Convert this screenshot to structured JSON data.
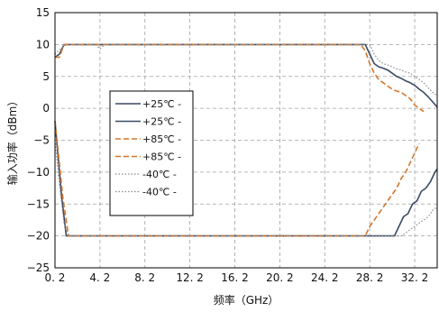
{
  "chart_data": {
    "type": "line",
    "title": "",
    "xlabel": "频率（GHz）",
    "ylabel": "输入功率（dBm）",
    "xlim": [
      0.2,
      34.2
    ],
    "ylim": [
      -25,
      15
    ],
    "xticks": [
      0.2,
      4.2,
      8.2,
      12.2,
      16.2,
      20.2,
      24.2,
      28.2,
      32.2
    ],
    "xtick_labels": [
      "0. 2",
      "4. 2",
      "8. 2",
      "12. 2",
      "16. 2",
      "20. 2",
      "24. 2",
      "28. 2",
      "32. 2"
    ],
    "yticks": [
      15,
      10,
      5,
      0,
      -5,
      -10,
      -15,
      -20,
      -25
    ],
    "ytick_labels": [
      "15",
      "10",
      "5",
      "0",
      "−5",
      "−10",
      "−15",
      "−20",
      "−25"
    ],
    "grid": true,
    "legend_position": "center-left",
    "series": [
      {
        "name": "+25℃ -",
        "color": "#3a4a64",
        "style": "solid",
        "points": [
          [
            0.2,
            8
          ],
          [
            0.6,
            8.5
          ],
          [
            1.0,
            10
          ],
          [
            27.8,
            10
          ],
          [
            28.2,
            8.5
          ],
          [
            28.6,
            7
          ],
          [
            29.0,
            6.5
          ],
          [
            29.4,
            6.3
          ],
          [
            29.8,
            6
          ],
          [
            30.2,
            5.5
          ],
          [
            30.6,
            5
          ],
          [
            31.0,
            4.7
          ],
          [
            31.4,
            4.3
          ],
          [
            31.8,
            4
          ],
          [
            32.2,
            3.6
          ],
          [
            32.6,
            3
          ],
          [
            33.0,
            2.5
          ],
          [
            33.4,
            1.8
          ],
          [
            33.8,
            1
          ],
          [
            34.2,
            0.2
          ]
        ]
      },
      {
        "name": "+25℃ -",
        "color": "#3a4a64",
        "style": "solid",
        "points": [
          [
            0.2,
            -2
          ],
          [
            0.5,
            -8
          ],
          [
            0.8,
            -14
          ],
          [
            1.2,
            -20
          ],
          [
            30.4,
            -20
          ],
          [
            30.8,
            -18.5
          ],
          [
            31.2,
            -17
          ],
          [
            31.6,
            -16.5
          ],
          [
            32.0,
            -15
          ],
          [
            32.4,
            -14.5
          ],
          [
            32.8,
            -13
          ],
          [
            33.2,
            -12.5
          ],
          [
            33.6,
            -11.5
          ],
          [
            34.0,
            -10
          ],
          [
            34.2,
            -9.5
          ]
        ]
      },
      {
        "name": "+85℃ -",
        "color": "#d4762c",
        "style": "dashed",
        "points": [
          [
            0.2,
            8
          ],
          [
            0.6,
            8
          ],
          [
            1.0,
            10
          ],
          [
            27.4,
            10
          ],
          [
            27.8,
            9
          ],
          [
            28.2,
            7
          ],
          [
            28.6,
            5.5
          ],
          [
            29.0,
            4.5
          ],
          [
            29.4,
            4
          ],
          [
            29.8,
            3.5
          ],
          [
            30.2,
            3
          ],
          [
            30.6,
            2.7
          ],
          [
            31.0,
            2.5
          ],
          [
            31.4,
            2
          ],
          [
            31.8,
            1.5
          ],
          [
            32.2,
            0.5
          ],
          [
            32.6,
            0
          ],
          [
            33.0,
            -0.5
          ]
        ]
      },
      {
        "name": "+85℃ -",
        "color": "#d4762c",
        "style": "dashed",
        "points": [
          [
            0.2,
            -2
          ],
          [
            0.5,
            -7
          ],
          [
            0.9,
            -14
          ],
          [
            1.4,
            -20
          ],
          [
            27.8,
            -20
          ],
          [
            28.2,
            -18.5
          ],
          [
            28.6,
            -17.5
          ],
          [
            29.0,
            -16.5
          ],
          [
            29.4,
            -15.5
          ],
          [
            29.8,
            -14.5
          ],
          [
            30.2,
            -13.5
          ],
          [
            30.6,
            -12.5
          ],
          [
            31.0,
            -11
          ],
          [
            31.4,
            -10
          ],
          [
            31.8,
            -8.5
          ],
          [
            32.2,
            -7
          ],
          [
            32.6,
            -5.5
          ]
        ]
      },
      {
        "name": "-40℃ -",
        "color": "#8a8a8a",
        "style": "dotted",
        "points": [
          [
            0.2,
            8.5
          ],
          [
            0.8,
            9.5
          ],
          [
            1.2,
            10
          ],
          [
            3.8,
            10
          ],
          [
            4.2,
            9.3
          ],
          [
            4.6,
            10
          ],
          [
            28.2,
            10
          ],
          [
            28.6,
            8.5
          ],
          [
            29.0,
            7.5
          ],
          [
            29.4,
            7
          ],
          [
            29.8,
            6.8
          ],
          [
            30.2,
            6.5
          ],
          [
            30.6,
            6.2
          ],
          [
            31.0,
            6
          ],
          [
            31.4,
            5.7
          ],
          [
            31.8,
            5.5
          ],
          [
            32.2,
            5
          ],
          [
            32.6,
            4.5
          ],
          [
            33.0,
            4
          ],
          [
            33.4,
            3.2
          ],
          [
            33.8,
            2.5
          ],
          [
            34.2,
            2
          ]
        ]
      },
      {
        "name": "-40℃ -",
        "color": "#8a8a8a",
        "style": "dotted",
        "points": [
          [
            0.2,
            -5
          ],
          [
            0.6,
            -12
          ],
          [
            1.0,
            -18
          ],
          [
            1.4,
            -20
          ],
          [
            30.6,
            -20
          ],
          [
            31.0,
            -20
          ],
          [
            31.4,
            -19.5
          ],
          [
            31.8,
            -19
          ],
          [
            32.2,
            -18.5
          ],
          [
            32.6,
            -18
          ],
          [
            33.0,
            -17.5
          ],
          [
            33.4,
            -17
          ],
          [
            33.8,
            -16
          ],
          [
            34.2,
            -15.5
          ]
        ]
      }
    ]
  }
}
